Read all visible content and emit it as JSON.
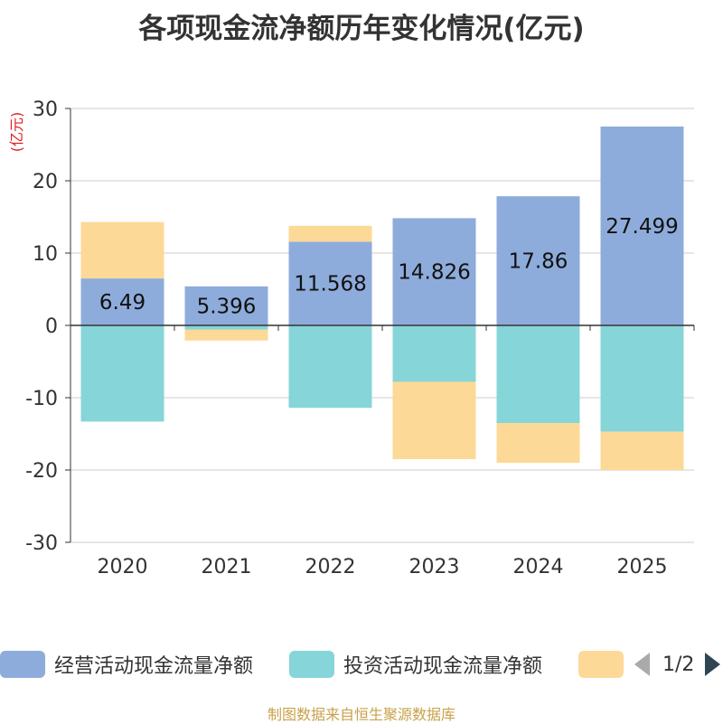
{
  "chart_data": {
    "type": "bar",
    "stacked": true,
    "title": "各项现金流净额历年变化情况(亿元)",
    "ylabel": "(亿元)",
    "xlabel": "",
    "ylim": [
      -30,
      30
    ],
    "yticks": [
      30,
      20,
      10,
      0,
      -10,
      -20,
      -30
    ],
    "categories": [
      "2020",
      "2021",
      "2022",
      "2023",
      "2024",
      "2025"
    ],
    "series": [
      {
        "name": "经营活动现金流量净额",
        "color": "#8eacdb",
        "values": [
          6.49,
          5.396,
          11.568,
          14.826,
          17.86,
          27.499
        ],
        "show_labels": true
      },
      {
        "name": "投资活动现金流量净额",
        "color": "#86d5d8",
        "values": [
          -13.3,
          -0.6,
          -11.4,
          -7.8,
          -13.5,
          -14.7
        ],
        "show_labels": false
      },
      {
        "name": "",
        "color": "#fdd997",
        "values": [
          7.8,
          -1.5,
          2.2,
          -10.7,
          -5.5,
          -5.3
        ],
        "show_labels": false
      }
    ],
    "legend_position": "bottom"
  },
  "legend": {
    "items": [
      {
        "label": "经营活动现金流量净额",
        "color": "#8eacdb"
      },
      {
        "label": "投资活动现金流量净额",
        "color": "#86d5d8"
      },
      {
        "label": "",
        "color": "#fdd997"
      }
    ],
    "page_indicator": "1/2"
  },
  "footer": {
    "source": "制图数据来自恒生聚源数据库"
  }
}
